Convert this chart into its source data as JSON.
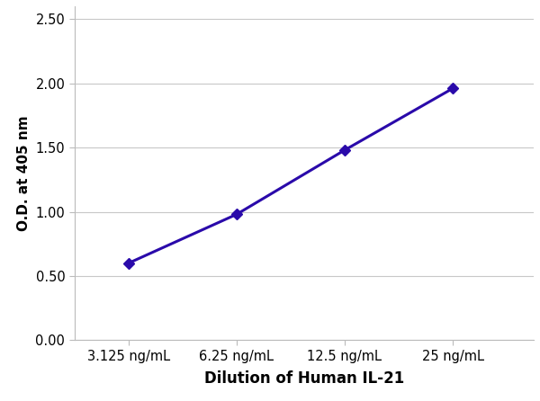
{
  "x_labels": [
    "3.125 ng/mL",
    "6.25 ng/mL",
    "12.5 ng/mL",
    "25 ng/mL"
  ],
  "x_positions": [
    1,
    2,
    3,
    4
  ],
  "y_values": [
    0.6,
    0.98,
    1.48,
    1.96
  ],
  "line_color": "#2a0aaa",
  "marker_color": "#2a0aaa",
  "marker_style": "D",
  "marker_size": 6,
  "line_width": 2.2,
  "xlabel": "Dilution of Human IL-21",
  "ylabel": "O.D. at 405 nm",
  "ylim": [
    0.0,
    2.6
  ],
  "xlim": [
    0.5,
    4.75
  ],
  "yticks": [
    0.0,
    0.5,
    1.0,
    1.5,
    2.0,
    2.5
  ],
  "ytick_labels": [
    "0.00",
    "0.50",
    "1.00",
    "1.50",
    "2.00",
    "2.50"
  ],
  "background_color": "#ffffff",
  "grid_color": "#c8c8c8",
  "xlabel_fontsize": 12,
  "ylabel_fontsize": 11,
  "tick_fontsize": 10.5,
  "xlabel_fontweight": "bold",
  "ylabel_fontweight": "bold"
}
